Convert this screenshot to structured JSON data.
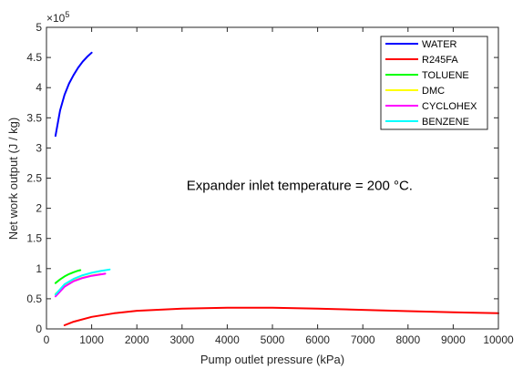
{
  "chart_data": {
    "type": "line",
    "title": "",
    "xlabel": "Pump outlet pressure (kPa)",
    "ylabel": "Net work output (J / kg)",
    "xlim": [
      0,
      10000
    ],
    "ylim": [
      0,
      500000
    ],
    "xticks": [
      0,
      1000,
      2000,
      3000,
      4000,
      5000,
      6000,
      7000,
      8000,
      9000,
      10000
    ],
    "yticks": [
      0,
      50000,
      100000,
      150000,
      200000,
      250000,
      300000,
      350000,
      400000,
      450000,
      500000
    ],
    "ytick_labels": [
      "0",
      "0.5",
      "1",
      "1.5",
      "2",
      "2.5",
      "3",
      "3.5",
      "4",
      "4.5",
      "5"
    ],
    "y_exponent_label": "×10",
    "y_exponent_power": "5",
    "grid": false,
    "legend_position": "top-right",
    "annotation": {
      "text": "Expander inlet temperature = 200 °C.",
      "x": 3100,
      "y": 230000
    },
    "series": [
      {
        "name": "WATER",
        "color": "#0000ff",
        "x": [
          200,
          300,
          400,
          500,
          600,
          700,
          800,
          900,
          1000
        ],
        "y": [
          320000,
          362000,
          388000,
          407000,
          421000,
          433000,
          443000,
          451000,
          458000
        ]
      },
      {
        "name": "R245FA",
        "color": "#ff0000",
        "x": [
          400,
          600,
          1000,
          1500,
          2000,
          3000,
          4000,
          4500,
          5000,
          6000,
          7000,
          8000,
          9000,
          10000
        ],
        "y": [
          6000,
          12000,
          20000,
          26000,
          30000,
          33500,
          35000,
          35200,
          35000,
          33500,
          31500,
          29500,
          27500,
          26000
        ]
      },
      {
        "name": "TOLUENE",
        "color": "#00ff00",
        "x": [
          200,
          300,
          400,
          500,
          600,
          700,
          750
        ],
        "y": [
          76000,
          82000,
          87000,
          91000,
          94000,
          96500,
          97500
        ]
      },
      {
        "name": "DMC",
        "color": "#ffff00",
        "x": [
          200,
          400,
          600,
          800,
          1000,
          1200
        ],
        "y": [
          58000,
          72000,
          80000,
          85000,
          88500,
          91000
        ]
      },
      {
        "name": "CYCLOHEX",
        "color": "#ff00ff",
        "x": [
          200,
          400,
          600,
          800,
          1000,
          1300
        ],
        "y": [
          54000,
          70000,
          79000,
          84500,
          88000,
          91500
        ]
      },
      {
        "name": "BENZENE",
        "color": "#00ffff",
        "x": [
          200,
          400,
          600,
          800,
          1000,
          1200,
          1400
        ],
        "y": [
          57000,
          74000,
          83000,
          89000,
          93000,
          96000,
          98500
        ]
      }
    ]
  }
}
